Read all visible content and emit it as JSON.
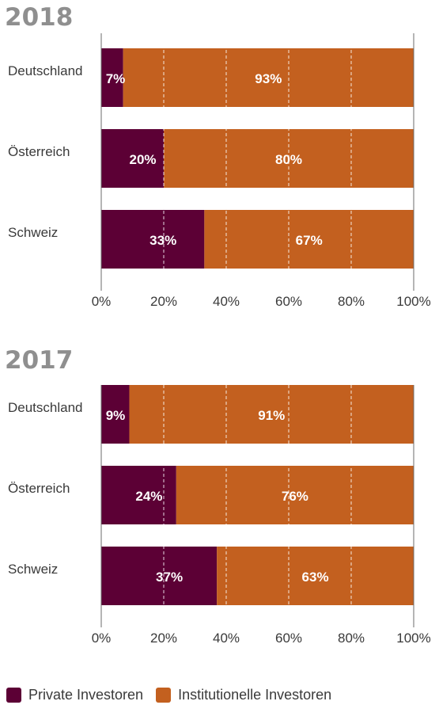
{
  "colors": {
    "private": "#5c0035",
    "institutional": "#c3601f",
    "axis": "#555555",
    "title": "#8f8f8f"
  },
  "legend": {
    "items": [
      {
        "label": "Private Investoren",
        "color": "#5c0035"
      },
      {
        "label": "Institutionelle Investoren",
        "color": "#c3601f"
      }
    ]
  },
  "chart_data": [
    {
      "type": "bar",
      "orientation": "horizontal",
      "stacked": true,
      "title": "2018",
      "categories": [
        "Deutschland",
        "Österreich",
        "Schweiz"
      ],
      "series": [
        {
          "name": "Private Investoren",
          "values": [
            7,
            20,
            33
          ],
          "labels": [
            "7%",
            "20%",
            "33%"
          ]
        },
        {
          "name": "Institutionelle Investoren",
          "values": [
            93,
            80,
            67
          ],
          "labels": [
            "93%",
            "80%",
            "67%"
          ]
        }
      ],
      "xlim": [
        0,
        100
      ],
      "xticks": [
        "0%",
        "20%",
        "40%",
        "60%",
        "80%",
        "100%"
      ],
      "grid": "vertical dashed",
      "legend_position": "bottom"
    },
    {
      "type": "bar",
      "orientation": "horizontal",
      "stacked": true,
      "title": "2017",
      "categories": [
        "Deutschland",
        "Österreich",
        "Schweiz"
      ],
      "series": [
        {
          "name": "Private Investoren",
          "values": [
            9,
            24,
            37
          ],
          "labels": [
            "9%",
            "24%",
            "37%"
          ]
        },
        {
          "name": "Institutionelle Investoren",
          "values": [
            91,
            76,
            63
          ],
          "labels": [
            "91%",
            "76%",
            "63%"
          ]
        }
      ],
      "xlim": [
        0,
        100
      ],
      "xticks": [
        "0%",
        "20%",
        "40%",
        "60%",
        "80%",
        "100%"
      ],
      "grid": "vertical dashed",
      "legend_position": "bottom"
    }
  ]
}
